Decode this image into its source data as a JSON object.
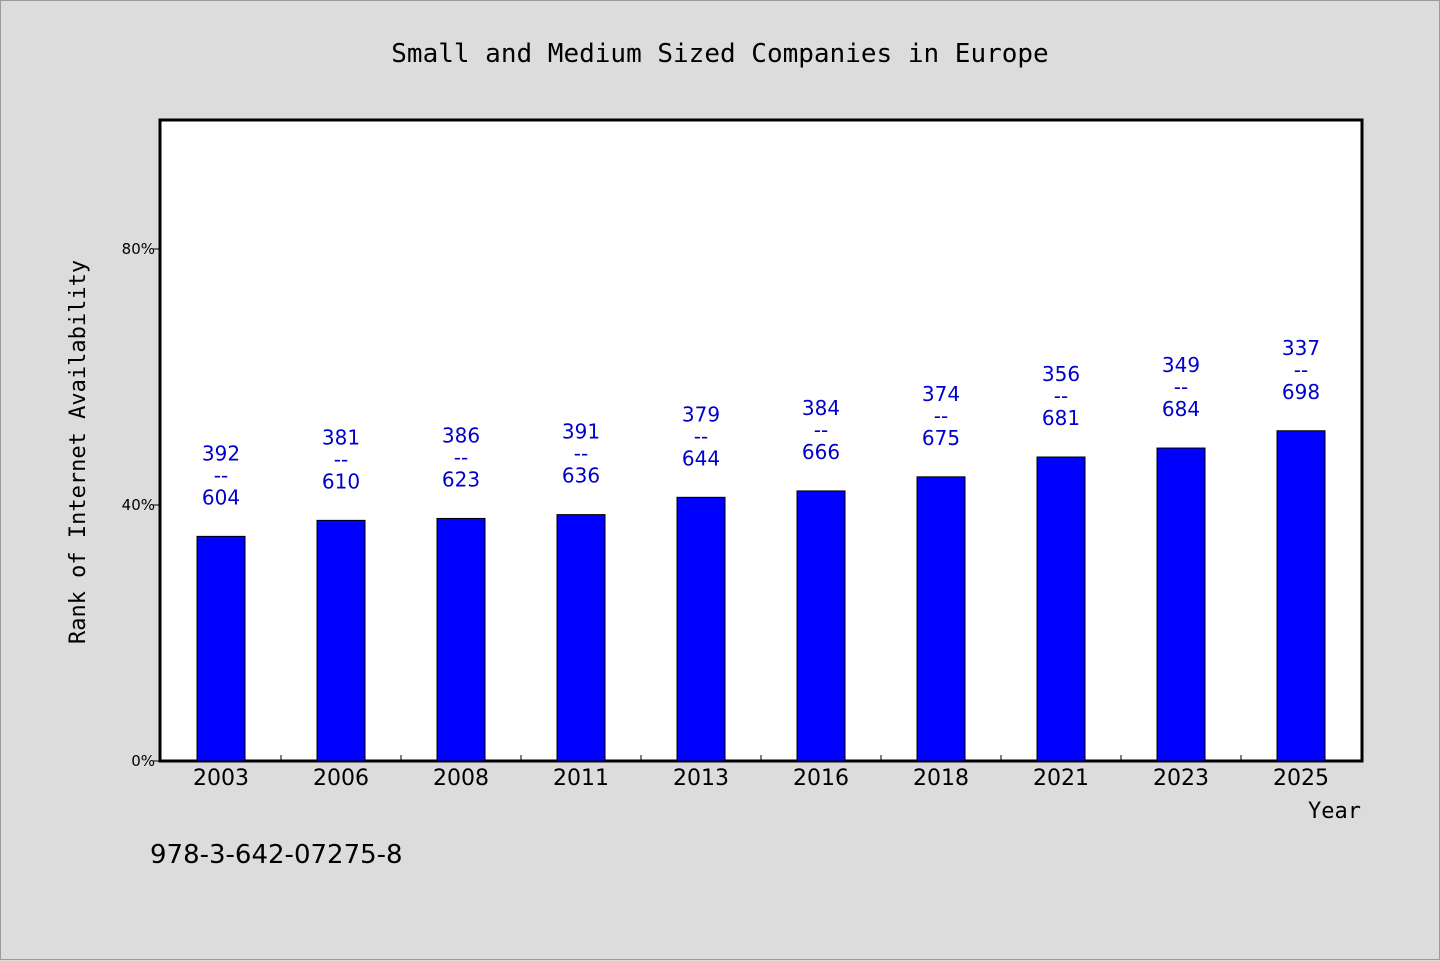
{
  "chart_data": {
    "type": "bar",
    "title": "Small and Medium Sized Companies in Europe",
    "xlabel": "Year",
    "ylabel": "Rank of Internet Availability",
    "ylim": [
      0,
      100
    ],
    "yticks": [
      0,
      40,
      80
    ],
    "ytick_labels": [
      "0%",
      "40%",
      "80%"
    ],
    "categories": [
      "2003",
      "2006",
      "2008",
      "2011",
      "2013",
      "2016",
      "2018",
      "2021",
      "2023",
      "2025"
    ],
    "values": [
      35.1,
      37.6,
      37.9,
      38.5,
      41.2,
      42.2,
      44.4,
      47.5,
      48.9,
      51.6
    ],
    "data_labels": [
      {
        "top": "392",
        "sep": "--",
        "bottom": "604"
      },
      {
        "top": "381",
        "sep": "--",
        "bottom": "610"
      },
      {
        "top": "386",
        "sep": "--",
        "bottom": "623"
      },
      {
        "top": "391",
        "sep": "--",
        "bottom": "636"
      },
      {
        "top": "379",
        "sep": "--",
        "bottom": "644"
      },
      {
        "top": "384",
        "sep": "--",
        "bottom": "666"
      },
      {
        "top": "374",
        "sep": "--",
        "bottom": "675"
      },
      {
        "top": "356",
        "sep": "--",
        "bottom": "681"
      },
      {
        "top": "349",
        "sep": "--",
        "bottom": "684"
      },
      {
        "top": "337",
        "sep": "--",
        "bottom": "698"
      }
    ],
    "bar_color": "#0000ff",
    "label_color": "#0000cc",
    "grid": false
  },
  "footnote": "978-3-642-07275-8",
  "colors": {
    "background": "#dcdcdc",
    "plot_background": "#ffffff"
  }
}
